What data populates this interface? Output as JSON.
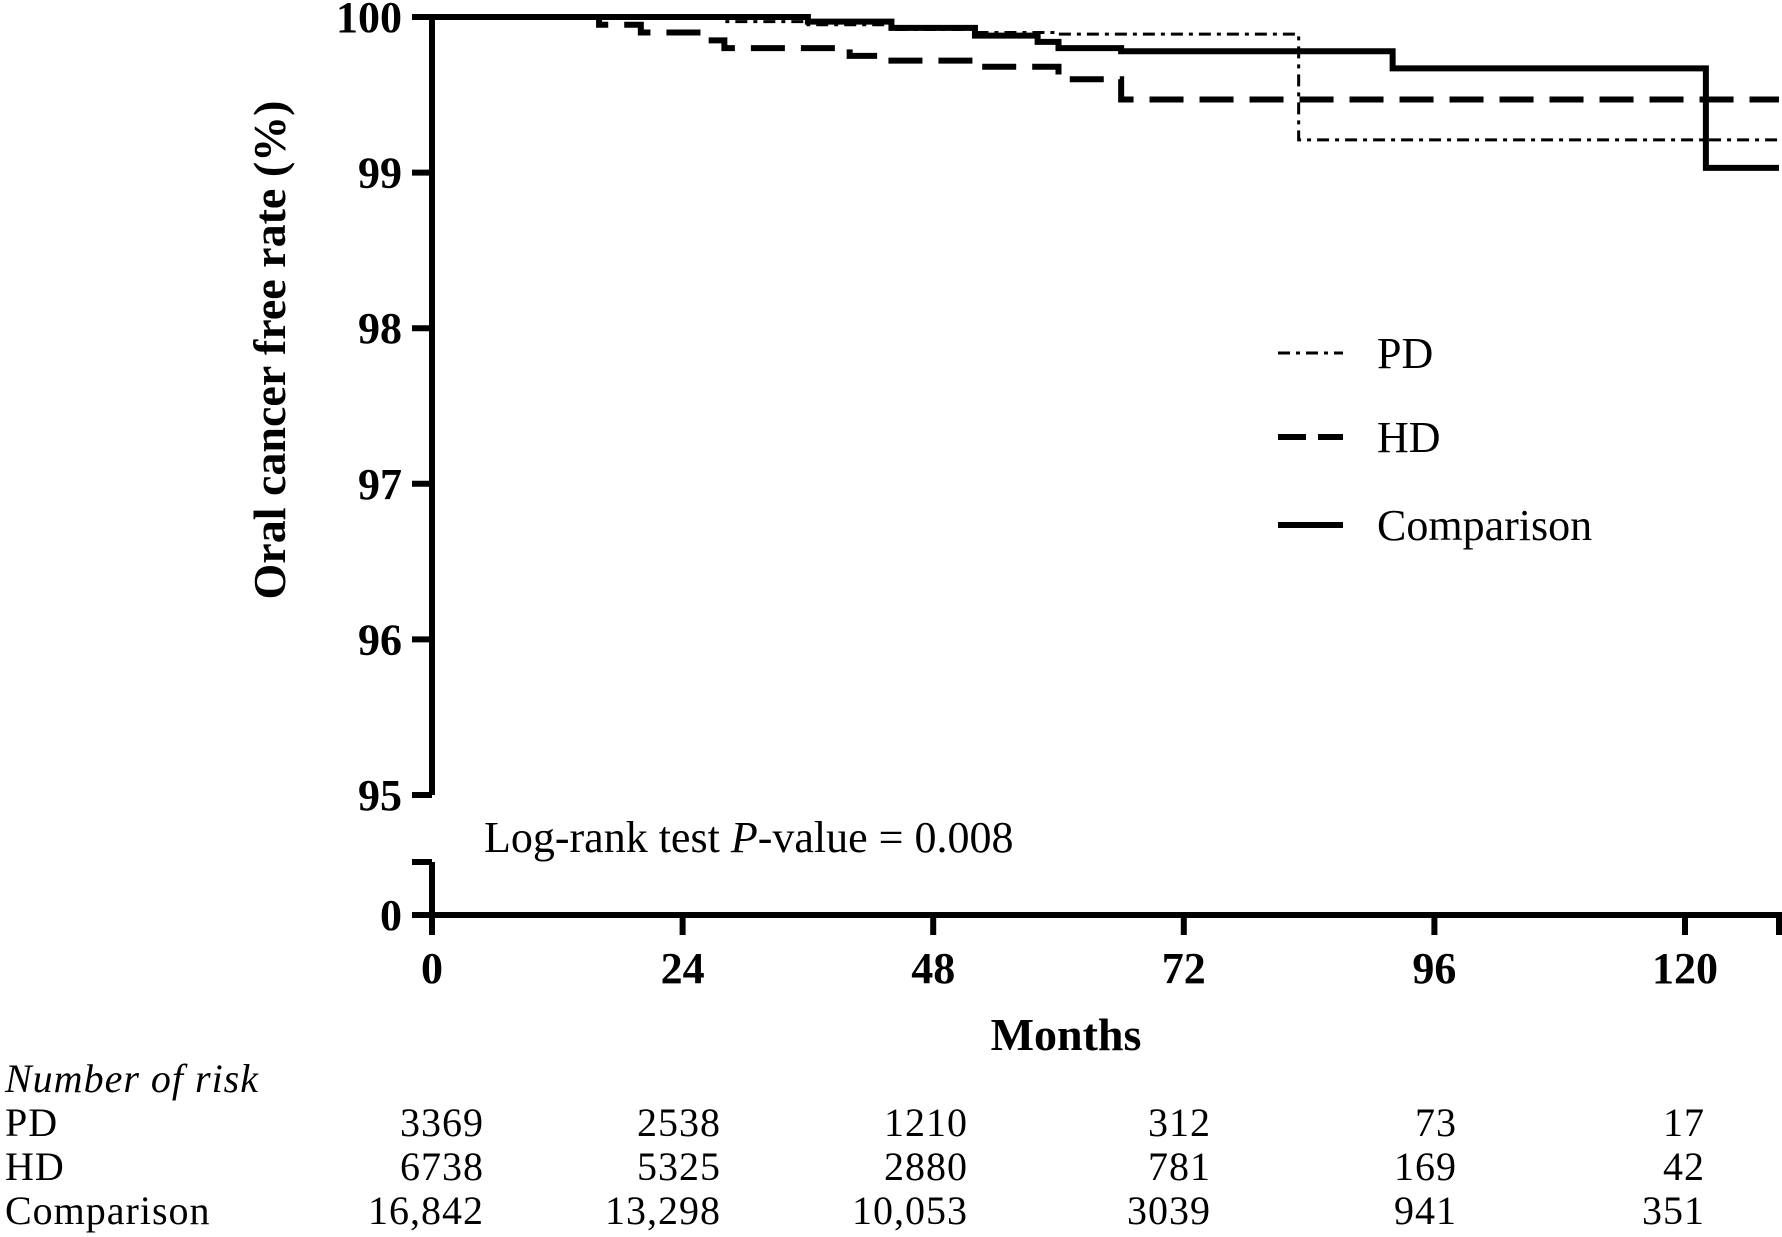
{
  "chart_data": {
    "type": "line",
    "ylabel": "Oral cancer free rate (%)",
    "xlabel": "Months",
    "x_ticks": [
      "0",
      "24",
      "48",
      "72",
      "96",
      "120"
    ],
    "x_tick_values": [
      0,
      24,
      48,
      72,
      96,
      120
    ],
    "y_ticks": [
      "0",
      "95",
      "96",
      "97",
      "98",
      "99",
      "100"
    ],
    "y_tick_values": [
      0,
      95,
      96,
      97,
      98,
      99,
      100
    ],
    "y_axis_break": [
      0,
      95
    ],
    "xlim": [
      0,
      129
    ],
    "ylim": [
      95,
      100
    ],
    "legend_position": "right",
    "annotation": {
      "prefix": "Log-rank test ",
      "italic": "P",
      "suffix": "-value = 0.008"
    },
    "series": [
      {
        "name": "PD",
        "style": "dash-dot",
        "steps": [
          [
            0,
            100
          ],
          [
            12,
            100
          ],
          [
            20,
            99.99
          ],
          [
            28,
            99.97
          ],
          [
            36,
            99.95
          ],
          [
            44,
            99.92
          ],
          [
            52,
            99.9
          ],
          [
            60,
            99.89
          ],
          [
            83,
            99.89
          ],
          [
            83,
            99.21
          ],
          [
            129,
            99.21
          ]
        ]
      },
      {
        "name": "HD",
        "style": "dashed",
        "steps": [
          [
            0,
            100
          ],
          [
            12,
            100
          ],
          [
            16,
            99.95
          ],
          [
            20,
            99.9
          ],
          [
            26,
            99.85
          ],
          [
            28,
            99.8
          ],
          [
            40,
            99.75
          ],
          [
            44,
            99.72
          ],
          [
            52,
            99.68
          ],
          [
            60,
            99.6
          ],
          [
            66,
            99.58
          ],
          [
            66,
            99.47
          ],
          [
            129,
            99.47
          ]
        ]
      },
      {
        "name": "Comparison",
        "style": "solid",
        "steps": [
          [
            0,
            100
          ],
          [
            28,
            100
          ],
          [
            36,
            99.97
          ],
          [
            44,
            99.93
          ],
          [
            52,
            99.88
          ],
          [
            58,
            99.84
          ],
          [
            60,
            99.8
          ],
          [
            66,
            99.78
          ],
          [
            92,
            99.78
          ],
          [
            92,
            99.67
          ],
          [
            122,
            99.67
          ],
          [
            122,
            99.03
          ],
          [
            129,
            99.03
          ]
        ]
      }
    ],
    "risk_table": {
      "title": "Number of risk",
      "rows": [
        {
          "label": "PD",
          "values": [
            "3369",
            "2538",
            "1210",
            "312",
            "73",
            "17"
          ]
        },
        {
          "label": "HD",
          "values": [
            "6738",
            "5325",
            "2880",
            "781",
            "169",
            "42"
          ]
        },
        {
          "label": "Comparison",
          "values": [
            "16,842",
            "13,298",
            "10,053",
            "3039",
            "941",
            "351"
          ]
        }
      ]
    }
  }
}
